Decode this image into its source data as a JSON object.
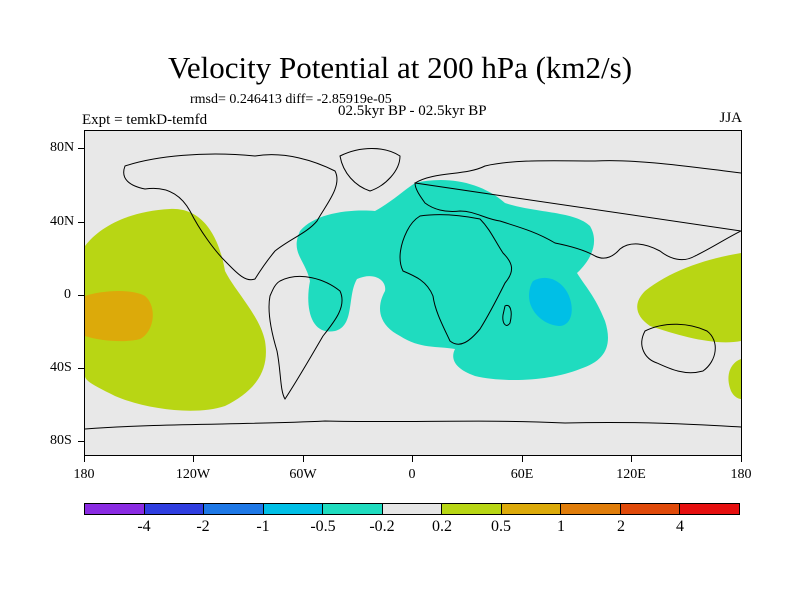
{
  "title": "Velocity Potential at 200 hPa (km2/s)",
  "stats": "rmsd= 0.246413 diff= -2.85919e-05",
  "experiment": "Expt = temkD-temfd",
  "period": "02.5kyr BP - 02.5kyr BP",
  "season": "JJA",
  "x_axis": {
    "ticks": [
      "180",
      "120W",
      "60W",
      "0",
      "60E",
      "120E",
      "180"
    ]
  },
  "y_axis": {
    "ticks": [
      "80N",
      "40N",
      "0",
      "40S",
      "80S"
    ]
  },
  "colorbar": {
    "colors": [
      "#8a2be2",
      "#2f3ee0",
      "#1e78e6",
      "#00bfe6",
      "#1fdcbf",
      "#e6e6e6",
      "#b8d614",
      "#dcaa0a",
      "#e07d0a",
      "#e04a0a",
      "#e60f0f"
    ],
    "labels": [
      "-4",
      "-2",
      "-1",
      "-0.5",
      "-0.2",
      "0.2",
      "0.5",
      "1",
      "2",
      "4"
    ]
  },
  "map": {
    "background_color": "#e8e8e8",
    "positive_weak_color": "#b8d614",
    "positive_moderate_color": "#dcaa0a",
    "negative_weak_color": "#1fdcbf",
    "negative_moderate_color": "#00bfe6"
  }
}
